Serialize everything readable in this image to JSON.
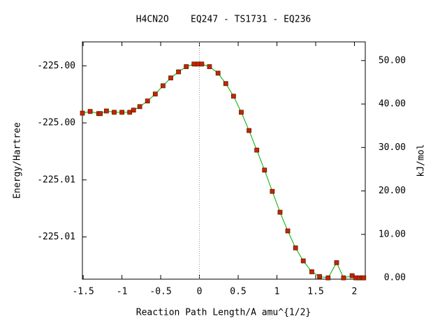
{
  "chart_data": {
    "type": "line",
    "title": "H4CN2O    EQ247 - TS1731 - EQ236",
    "xlabel": "Reaction Path Length/A amu^{1/2}",
    "ylabel": "Energy/Hartree",
    "y2label": "kJ/mol",
    "x": [
      -1.51,
      -1.41,
      -1.3,
      -1.28,
      -1.2,
      -1.1,
      -1.0,
      -0.9,
      -0.85,
      -0.77,
      -0.67,
      -0.57,
      -0.47,
      -0.37,
      -0.27,
      -0.17,
      -0.07,
      -0.02,
      0.03,
      0.13,
      0.24,
      0.34,
      0.44,
      0.54,
      0.64,
      0.74,
      0.84,
      0.94,
      1.04,
      1.14,
      1.24,
      1.34,
      1.45,
      1.55,
      1.66,
      1.77,
      1.86,
      1.97,
      2.02,
      2.06,
      2.1,
      2.12
    ],
    "series": [
      {
        "name": "EQ247 - TS1731 - EQ236",
        "color": "#00aa00",
        "marker_color": "#cc2200",
        "axis": "y2",
        "values": [
          37.9,
          38.3,
          37.8,
          37.8,
          38.4,
          38.1,
          38.1,
          38.1,
          38.6,
          39.4,
          40.7,
          42.3,
          44.2,
          46.0,
          47.4,
          48.6,
          49.2,
          49.2,
          49.2,
          48.6,
          47.1,
          44.7,
          41.8,
          38.1,
          33.9,
          29.4,
          24.8,
          19.9,
          15.1,
          10.8,
          6.9,
          3.9,
          1.4,
          0.3,
          0,
          3.5,
          0,
          0.5,
          0,
          0,
          0,
          0
        ]
      }
    ],
    "xlim": [
      -1.51,
      2.14
    ],
    "xticks": [
      -1.5,
      -1,
      -0.5,
      0,
      0.5,
      1,
      1.5,
      2
    ],
    "ylim": [
      -225.0167,
      -224.9959
    ],
    "yticks": [
      {
        "value": -224.998,
        "label": "-225.00"
      },
      {
        "value": -225.003,
        "label": "-225.00"
      },
      {
        "value": -225.008,
        "label": "-225.01"
      },
      {
        "value": -225.013,
        "label": "-225.01"
      }
    ],
    "y2lim": [
      -0.3,
      54.3
    ],
    "y2ticks": [
      {
        "value": 0,
        "label": "0.00"
      },
      {
        "value": 10,
        "label": "10.00"
      },
      {
        "value": 20,
        "label": "20.00"
      },
      {
        "value": 30,
        "label": "30.00"
      },
      {
        "value": 40,
        "label": "40.00"
      },
      {
        "value": 50,
        "label": "50.00"
      }
    ],
    "vline_x": 0
  }
}
